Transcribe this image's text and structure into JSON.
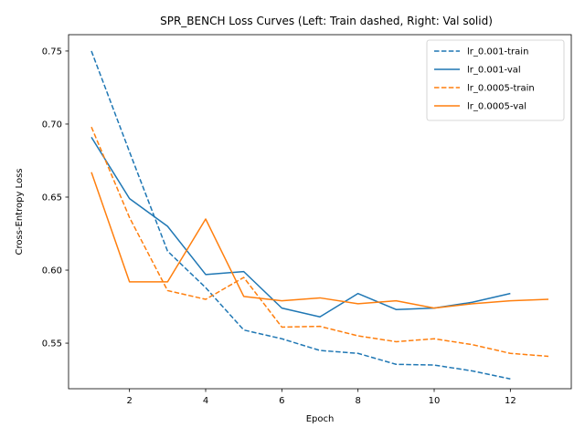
{
  "chart_data": {
    "type": "line",
    "title": "SPR_BENCH Loss Curves (Left: Train dashed, Right: Val solid)",
    "xlabel": "Epoch",
    "ylabel": "Cross-Entropy Loss",
    "xlim": [
      0.4,
      13.6
    ],
    "ylim": [
      0.5188,
      0.7612
    ],
    "xticks": [
      2,
      4,
      6,
      8,
      10,
      12
    ],
    "yticks": [
      0.55,
      0.6,
      0.65,
      0.7,
      0.75
    ],
    "ytick_labels": [
      "0.55",
      "0.60",
      "0.65",
      "0.70",
      "0.75"
    ],
    "grid": false,
    "legend_position": "top-right",
    "series": [
      {
        "name": "lr_0.001-train",
        "style": "dashed",
        "color": "#1f77b4",
        "x": [
          1,
          2,
          3,
          4,
          5,
          6,
          7,
          8,
          9,
          10,
          11,
          12
        ],
        "y": [
          0.75,
          0.681,
          0.613,
          0.588,
          0.559,
          0.553,
          0.545,
          0.543,
          0.5355,
          0.535,
          0.531,
          0.5255
        ]
      },
      {
        "name": "lr_0.001-val",
        "style": "solid",
        "color": "#1f77b4",
        "x": [
          1,
          2,
          3,
          4,
          5,
          6,
          7,
          8,
          9,
          10,
          11,
          12
        ],
        "y": [
          0.691,
          0.649,
          0.63,
          0.597,
          0.599,
          0.574,
          0.568,
          0.584,
          0.573,
          0.574,
          0.578,
          0.584
        ]
      },
      {
        "name": "lr_0.0005-train",
        "style": "dashed",
        "color": "#ff7f0e",
        "x": [
          1,
          2,
          3,
          4,
          5,
          6,
          7,
          8,
          9,
          10,
          11,
          12,
          13
        ],
        "y": [
          0.698,
          0.636,
          0.586,
          0.58,
          0.595,
          0.561,
          0.5615,
          0.555,
          0.551,
          0.553,
          0.549,
          0.543,
          0.541
        ]
      },
      {
        "name": "lr_0.0005-val",
        "style": "solid",
        "color": "#ff7f0e",
        "x": [
          1,
          2,
          3,
          4,
          5,
          6,
          7,
          8,
          9,
          10,
          11,
          12,
          13
        ],
        "y": [
          0.667,
          0.592,
          0.592,
          0.635,
          0.582,
          0.579,
          0.581,
          0.577,
          0.579,
          0.574,
          0.577,
          0.579,
          0.58
        ]
      }
    ]
  }
}
